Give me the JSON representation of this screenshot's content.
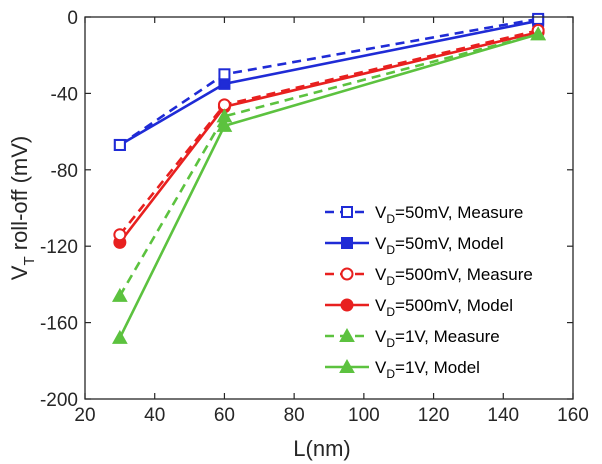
{
  "chart_data": {
    "type": "line",
    "x": [
      30,
      60,
      150
    ],
    "xlabel": "L(nm)",
    "ylabel": "V_T roll-off (mV)",
    "ylabel_main": "V",
    "ylabel_sub": "T",
    "ylabel_rest": " roll-off (mV)",
    "xlim": [
      20,
      160
    ],
    "ylim": [
      -200,
      0
    ],
    "xticks": [
      20,
      40,
      60,
      80,
      100,
      120,
      140,
      160
    ],
    "yticks": [
      0,
      -40,
      -80,
      -120,
      -160,
      -200
    ],
    "grid": false,
    "legend_position": "bottom-right",
    "series": [
      {
        "name": "V_D=50mV, Measure",
        "legend_pre": "V",
        "legend_sub": "D",
        "legend_post": "=50mV, Measure",
        "color": "#1f2bd6",
        "dash": true,
        "marker": "square-hollow",
        "values": [
          -67,
          -30,
          -1
        ]
      },
      {
        "name": "V_D=50mV, Model",
        "legend_pre": "V",
        "legend_sub": "D",
        "legend_post": "=50mV, Model",
        "color": "#1f2bd6",
        "dash": false,
        "marker": "square",
        "values": [
          -67,
          -35,
          -2
        ]
      },
      {
        "name": "V_D=500mV, Measure",
        "legend_pre": "V",
        "legend_sub": "D",
        "legend_post": "=500mV, Measure",
        "color": "#e8201f",
        "dash": true,
        "marker": "circle-hollow",
        "values": [
          -114,
          -46,
          -7
        ]
      },
      {
        "name": "V_D=500mV, Model",
        "legend_pre": "V",
        "legend_sub": "D",
        "legend_post": "=500mV, Model",
        "color": "#e8201f",
        "dash": false,
        "marker": "circle",
        "values": [
          -118,
          -47,
          -8
        ]
      },
      {
        "name": "V_D=1V, Measure",
        "legend_pre": "V",
        "legend_sub": "D",
        "legend_post": "=1V, Measure",
        "color": "#5cc23f",
        "dash": true,
        "marker": "triangle",
        "values": [
          -146,
          -52,
          -9
        ]
      },
      {
        "name": "V_D=1V, Model",
        "legend_pre": "V",
        "legend_sub": "D",
        "legend_post": "=1V, Model",
        "color": "#5cc23f",
        "dash": false,
        "marker": "triangle",
        "values": [
          -168,
          -57,
          -9
        ]
      }
    ]
  }
}
